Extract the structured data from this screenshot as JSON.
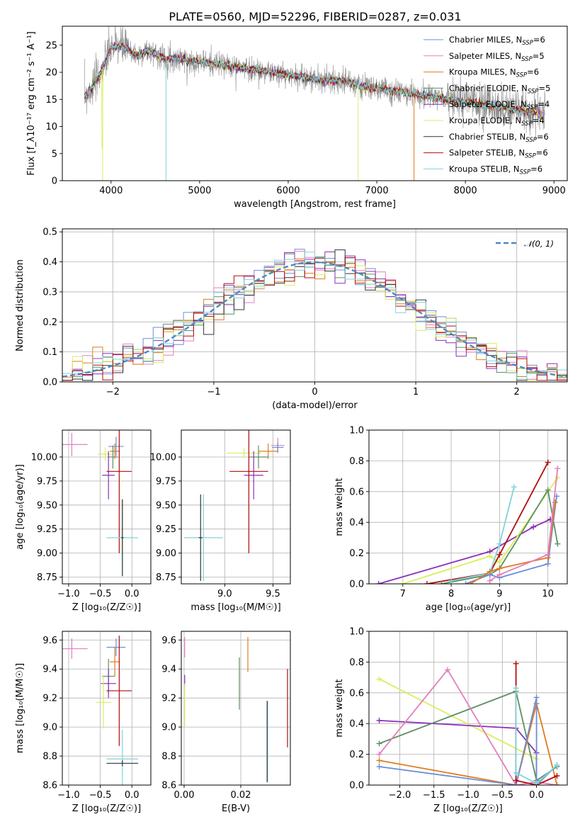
{
  "figure": {
    "title": "PLATE=0560, MJD=52296, FIBERID=0287, z=0.031"
  },
  "colors": {
    "Chabrier MILES": "#6b8fd6",
    "Salpeter MILES": "#e37fbc",
    "Kroupa MILES": "#e07b1f",
    "Chabrier ELODIE": "#5d8f63",
    "Salpeter ELODIE": "#8c2fb8",
    "Kroupa ELODIE": "#d9ee5c",
    "Chabrier STELIB": "#333333",
    "Salpeter STELIB": "#b20d0d",
    "Kroupa STELIB": "#7fd4d9",
    "gaussian": "#4f86c6"
  },
  "chart_data": [
    {
      "id": "spectrum",
      "type": "line",
      "xlabel": "wavelength [Angstrom, rest frame]",
      "ylabel": "Flux [f_λ10⁻¹⁷ erg cm⁻² s⁻¹ A⁻¹]",
      "xlim": [
        3450,
        9150
      ],
      "ylim": [
        0,
        28.5
      ],
      "xticks": [
        4000,
        5000,
        6000,
        7000,
        8000,
        9000
      ],
      "yticks": [
        0,
        5,
        10,
        15,
        20,
        25
      ],
      "xtick_labels": [
        "4000",
        "5000",
        "6000",
        "7000",
        "8000",
        "9000"
      ],
      "ytick_labels": [
        "0",
        "5",
        "10",
        "15",
        "20",
        "25"
      ],
      "legend_position": "top-right",
      "data_points": {
        "x": [
          3700,
          3800,
          3900,
          4000,
          4100,
          4200,
          4300,
          4400,
          4500,
          4600,
          4700,
          4800,
          4900,
          5000,
          5200,
          5400,
          5600,
          5800,
          6000,
          6200,
          6400,
          6600,
          6800,
          7000,
          7200,
          7400,
          7600,
          7800,
          8000,
          8200,
          8400,
          8600,
          8800
        ],
        "y": [
          15.5,
          17.5,
          20.5,
          24.5,
          25.0,
          24.0,
          23.0,
          24.0,
          23.5,
          22.5,
          22.5,
          22.5,
          22.0,
          22.0,
          21.5,
          21.0,
          20.5,
          20.0,
          19.5,
          19.0,
          18.5,
          18.5,
          17.5,
          17.0,
          16.5,
          16.0,
          15.5,
          15.0,
          14.5,
          14.0,
          13.5,
          13.0,
          12.5
        ]
      },
      "series": [
        {
          "name": "Chabrier MILES, N_SSP=6",
          "label_main": "Chabrier MILES, N",
          "label_sub": "SSP",
          "label_tail": "=6",
          "color_key": "Chabrier MILES"
        },
        {
          "name": "Salpeter MILES, N_SSP=5",
          "label_main": "Salpeter MILES, N",
          "label_sub": "SSP",
          "label_tail": "=5",
          "color_key": "Salpeter MILES"
        },
        {
          "name": "Kroupa MILES, N_SSP=6",
          "label_main": "Kroupa MILES, N",
          "label_sub": "SSP",
          "label_tail": "=6",
          "color_key": "Kroupa MILES"
        },
        {
          "name": "Chabrier ELODIE, N_SSP=5",
          "label_main": "Chabrier ELODIE, N",
          "label_sub": "SSP",
          "label_tail": "=5",
          "color_key": "Chabrier ELODIE"
        },
        {
          "name": "Salpeter ELODIE, N_SSP=4",
          "label_main": "Salpeter ELODIE, N",
          "label_sub": "SSP",
          "label_tail": "=4",
          "color_key": "Salpeter ELODIE"
        },
        {
          "name": "Kroupa ELODIE, N_SSP=4",
          "label_main": "Kroupa ELODIE, N",
          "label_sub": "SSP",
          "label_tail": "=4",
          "color_key": "Kroupa ELODIE"
        },
        {
          "name": "Chabrier STELIB, N_SSP=6",
          "label_main": "Chabrier STELIB, N",
          "label_sub": "SSP",
          "label_tail": "=6",
          "color_key": "Chabrier STELIB"
        },
        {
          "name": "Salpeter STELIB, N_SSP=6",
          "label_main": "Salpeter STELIB, N",
          "label_sub": "SSP",
          "label_tail": "=6",
          "color_key": "Salpeter STELIB"
        },
        {
          "name": "Kroupa STELIB, N_SSP=6",
          "label_main": "Kroupa STELIB, N",
          "label_sub": "SSP",
          "label_tail": "=6",
          "color_key": "Kroupa STELIB"
        }
      ]
    },
    {
      "id": "residuals",
      "type": "line",
      "xlabel": "(data-model)/error",
      "ylabel": "Normed distribution",
      "xlim": [
        -2.5,
        2.5
      ],
      "ylim": [
        0,
        0.51
      ],
      "xticks": [
        -2,
        -1,
        0,
        1,
        2
      ],
      "yticks": [
        0.0,
        0.1,
        0.2,
        0.3,
        0.4,
        0.5
      ],
      "xtick_labels": [
        "−2",
        "−1",
        "0",
        "1",
        "2"
      ],
      "ytick_labels": [
        "0.0",
        "0.1",
        "0.2",
        "0.3",
        "0.4",
        "0.5"
      ],
      "grid": true,
      "legend_position": "top-right",
      "gaussian": {
        "name": "𝒩(0, 1)",
        "mean": 0,
        "sigma": 1
      }
    },
    {
      "id": "age_vs_Z",
      "type": "scatter",
      "xlabel": "Z [log₁₀(Z/Z☉)]",
      "ylabel": "age  [log₁₀(age/yr)]",
      "xlim": [
        -1.1,
        0.3
      ],
      "ylim": [
        8.68,
        10.28
      ],
      "xticks": [
        -1.0,
        -0.5,
        0.0
      ],
      "yticks": [
        8.75,
        9.0,
        9.25,
        9.5,
        9.75,
        10.0
      ],
      "xtick_labels": [
        "−1.0",
        "−0.5",
        "0.0"
      ],
      "ytick_labels": [
        "8.75",
        "9.00",
        "9.25",
        "9.50",
        "9.75",
        "10.00"
      ],
      "grid": true,
      "points": [
        {
          "color_key": "Salpeter MILES",
          "x": -0.95,
          "xerr": 0.25,
          "y": 10.13,
          "yerr": 0.12
        },
        {
          "color_key": "Chabrier MILES",
          "x": -0.25,
          "xerr": 0.12,
          "y": 10.11,
          "yerr": 0.1
        },
        {
          "color_key": "Kroupa MILES",
          "x": -0.27,
          "xerr": 0.08,
          "y": 10.06,
          "yerr": 0.08
        },
        {
          "color_key": "Kroupa ELODIE",
          "x": -0.42,
          "xerr": 0.12,
          "y": 10.03,
          "yerr": 0.07
        },
        {
          "color_key": "Chabrier ELODIE",
          "x": -0.3,
          "xerr": 0.08,
          "y": 10.0,
          "yerr": 0.12
        },
        {
          "color_key": "Salpeter ELODIE",
          "x": -0.37,
          "xerr": 0.1,
          "y": 9.81,
          "yerr": 0.25
        },
        {
          "color_key": "Salpeter STELIB",
          "x": -0.2,
          "xerr": 0.2,
          "y": 9.85,
          "yerr": 0.85
        },
        {
          "color_key": "Kroupa STELIB",
          "x": -0.15,
          "xerr": 0.25,
          "y": 9.16,
          "yerr": 0.4
        },
        {
          "color_key": "Chabrier STELIB",
          "x": -0.15,
          "xerr": 0.02,
          "y": 9.16,
          "yerr": 0.4
        }
      ]
    },
    {
      "id": "age_vs_mass",
      "type": "scatter",
      "xlabel": "mass [log₁₀(M/M☉)]",
      "ylabel": "",
      "xlim": [
        8.55,
        9.68
      ],
      "ylim": [
        8.68,
        10.28
      ],
      "xticks": [
        9.0,
        9.5
      ],
      "yticks": [
        8.75,
        9.0,
        9.25,
        9.5,
        9.75,
        10.0
      ],
      "xtick_labels": [
        "9.0",
        "9.5"
      ],
      "ytick_labels": [
        "8.75",
        "9.00",
        "9.25",
        "9.50",
        "9.75",
        "10.00"
      ],
      "grid": true,
      "points": [
        {
          "color_key": "Salpeter MILES",
          "x": 9.55,
          "xerr": 0.07,
          "y": 10.12,
          "yerr": 0.08
        },
        {
          "color_key": "Chabrier MILES",
          "x": 9.55,
          "xerr": 0.06,
          "y": 10.1,
          "yerr": 0.05
        },
        {
          "color_key": "Kroupa MILES",
          "x": 9.45,
          "xerr": 0.1,
          "y": 10.06,
          "yerr": 0.08
        },
        {
          "color_key": "Kroupa ELODIE",
          "x": 9.2,
          "xerr": 0.18,
          "y": 10.04,
          "yerr": 0.05
        },
        {
          "color_key": "Chabrier ELODIE",
          "x": 9.35,
          "xerr": 0.1,
          "y": 10.0,
          "yerr": 0.12
        },
        {
          "color_key": "Salpeter ELODIE",
          "x": 9.3,
          "xerr": 0.1,
          "y": 9.81,
          "yerr": 0.25
        },
        {
          "color_key": "Salpeter STELIB",
          "x": 9.25,
          "xerr": 0.2,
          "y": 9.85,
          "yerr": 0.85
        },
        {
          "color_key": "Kroupa STELIB",
          "x": 8.78,
          "xerr": 0.2,
          "y": 9.16,
          "yerr": 0.45
        },
        {
          "color_key": "Chabrier STELIB",
          "x": 8.75,
          "xerr": 0.02,
          "y": 9.16,
          "yerr": 0.45
        }
      ]
    },
    {
      "id": "massweight_vs_age",
      "type": "line",
      "xlabel": "age  [log₁₀(age/yr)]",
      "ylabel": "mass weight",
      "xlim": [
        6.3,
        10.4
      ],
      "ylim": [
        0,
        1.0
      ],
      "xticks": [
        7,
        8,
        9,
        10
      ],
      "yticks": [
        0.0,
        0.2,
        0.4,
        0.6,
        0.8,
        1.0
      ],
      "xtick_labels": [
        "7",
        "8",
        "9",
        "10"
      ],
      "ytick_labels": [
        "0.0",
        "0.2",
        "0.4",
        "0.6",
        "0.8",
        "1.0"
      ],
      "grid": true,
      "series": [
        {
          "color_key": "Salpeter ELODIE",
          "x": [
            6.5,
            8.8,
            9.7,
            10.05
          ],
          "y": [
            0.0,
            0.21,
            0.37,
            0.42
          ]
        },
        {
          "color_key": "Kroupa ELODIE",
          "x": [
            7.0,
            8.8,
            9.0,
            10.2
          ],
          "y": [
            0.0,
            0.18,
            0.14,
            0.69
          ]
        },
        {
          "color_key": "Salpeter STELIB",
          "x": [
            7.5,
            8.8,
            9.0,
            10.0
          ],
          "y": [
            0.0,
            0.07,
            0.19,
            0.79
          ]
        },
        {
          "color_key": "Chabrier ELODIE",
          "x": [
            7.8,
            8.8,
            9.0,
            10.0,
            10.2
          ],
          "y": [
            0.0,
            0.06,
            0.1,
            0.61,
            0.26
          ]
        },
        {
          "color_key": "Kroupa STELIB",
          "x": [
            8.0,
            8.8,
            9.0,
            9.3
          ],
          "y": [
            0.02,
            0.07,
            0.26,
            0.63
          ]
        },
        {
          "color_key": "Chabrier MILES",
          "x": [
            8.3,
            8.8,
            9.0,
            10.0,
            10.18
          ],
          "y": [
            0.0,
            0.06,
            0.04,
            0.13,
            0.57
          ]
        },
        {
          "color_key": "Kroupa MILES",
          "x": [
            8.4,
            8.8,
            9.0,
            10.0,
            10.15
          ],
          "y": [
            0.0,
            0.08,
            0.1,
            0.17,
            0.53
          ]
        },
        {
          "color_key": "Salpeter MILES",
          "x": [
            8.8,
            9.0,
            10.0,
            10.2
          ],
          "y": [
            0.02,
            0.06,
            0.19,
            0.75
          ]
        }
      ]
    },
    {
      "id": "mass_vs_Z",
      "type": "scatter",
      "xlabel": "Z [log₁₀(Z/Z☉)]",
      "ylabel": "mass [log₁₀(M/M☉)]",
      "xlim": [
        -1.1,
        0.3
      ],
      "ylim": [
        8.6,
        9.66
      ],
      "xticks": [
        -1.0,
        -0.5,
        0.0
      ],
      "yticks": [
        8.6,
        8.8,
        9.0,
        9.2,
        9.4,
        9.6
      ],
      "xtick_labels": [
        "−1.0",
        "−0.5",
        "0.0"
      ],
      "ytick_labels": [
        "8.6",
        "8.8",
        "9.0",
        "9.2",
        "9.4",
        "9.6"
      ],
      "grid": true,
      "points": [
        {
          "color_key": "Salpeter MILES",
          "x": -0.95,
          "xerr": 0.25,
          "y": 9.54,
          "yerr": 0.07
        },
        {
          "color_key": "Chabrier MILES",
          "x": -0.25,
          "xerr": 0.15,
          "y": 9.55,
          "yerr": 0.06
        },
        {
          "color_key": "Kroupa MILES",
          "x": -0.27,
          "xerr": 0.08,
          "y": 9.45,
          "yerr": 0.1
        },
        {
          "color_key": "Chabrier ELODIE",
          "x": -0.37,
          "xerr": 0.1,
          "y": 9.35,
          "yerr": 0.12
        },
        {
          "color_key": "Salpeter ELODIE",
          "x": -0.37,
          "xerr": 0.12,
          "y": 9.3,
          "yerr": 0.1
        },
        {
          "color_key": "Kroupa ELODIE",
          "x": -0.45,
          "xerr": 0.12,
          "y": 9.17,
          "yerr": 0.18
        },
        {
          "color_key": "Salpeter STELIB",
          "x": -0.2,
          "xerr": 0.2,
          "y": 9.25,
          "yerr": 0.38
        },
        {
          "color_key": "Kroupa STELIB",
          "x": -0.15,
          "xerr": 0.25,
          "y": 8.78,
          "yerr": 0.2
        },
        {
          "color_key": "Chabrier STELIB",
          "x": -0.15,
          "xerr": 0.25,
          "y": 8.75,
          "yerr": 0.02
        }
      ]
    },
    {
      "id": "mass_vs_EBV",
      "type": "scatter",
      "xlabel": "E(B-V)",
      "ylabel": "",
      "xlim": [
        -0.001,
        0.0375
      ],
      "ylim": [
        8.6,
        9.66
      ],
      "xticks": [
        0.0,
        0.02
      ],
      "yticks": [
        8.6,
        8.8,
        9.0,
        9.2,
        9.4,
        9.6
      ],
      "xtick_labels": [
        "0.00",
        "0.02"
      ],
      "ytick_labels": [
        "8.6",
        "8.8",
        "9.0",
        "9.2",
        "9.4",
        "9.6"
      ],
      "grid": true,
      "points": [
        {
          "color_key": "Salpeter MILES",
          "x": 0.0002,
          "xerr": 0,
          "y": 9.55,
          "yerr": 0.07
        },
        {
          "color_key": "Salpeter ELODIE",
          "x": 0.0002,
          "xerr": 0,
          "y": 9.32,
          "yerr": 0.04
        },
        {
          "color_key": "Kroupa ELODIE",
          "x": 0.0002,
          "xerr": 0,
          "y": 9.15,
          "yerr": 0.15
        },
        {
          "color_key": "Chabrier ELODIE",
          "x": 0.0195,
          "xerr": 0,
          "y": 9.3,
          "yerr": 0.18
        },
        {
          "color_key": "Kroupa MILES",
          "x": 0.0225,
          "xerr": 0,
          "y": 9.5,
          "yerr": 0.12
        },
        {
          "color_key": "Kroupa STELIB",
          "x": 0.0295,
          "xerr": 0,
          "y": 8.9,
          "yerr": 0.28
        },
        {
          "color_key": "Chabrier STELIB",
          "x": 0.0293,
          "xerr": 0,
          "y": 8.9,
          "yerr": 0.28
        },
        {
          "color_key": "Salpeter STELIB",
          "x": 0.0365,
          "xerr": 0,
          "y": 9.13,
          "yerr": 0.27
        }
      ]
    },
    {
      "id": "massweight_vs_Z",
      "type": "line",
      "xlabel": "Z [log₁₀(Z/Z☉)]",
      "ylabel": "mass weight",
      "xlim": [
        -2.45,
        0.45
      ],
      "ylim": [
        0,
        1.0
      ],
      "xticks": [
        -2.0,
        -1.5,
        -1.0,
        -0.5,
        0.0
      ],
      "yticks": [
        0.0,
        0.2,
        0.4,
        0.6,
        0.8,
        1.0
      ],
      "xtick_labels": [
        "−2.0",
        "−1.5",
        "−1.0",
        "−0.5",
        "0.0"
      ],
      "ytick_labels": [
        "0.0",
        "0.2",
        "0.4",
        "0.6",
        "0.8",
        "1.0"
      ],
      "grid": true,
      "series": [
        {
          "color_key": "Kroupa ELODIE",
          "x": [
            -2.3,
            0.0,
            0.0
          ],
          "y": [
            0.69,
            0.17,
            0.0
          ]
        },
        {
          "color_key": "Salpeter ELODIE",
          "x": [
            -2.3,
            -0.3,
            0.0,
            0.0
          ],
          "y": [
            0.42,
            0.37,
            0.21,
            0.0
          ]
        },
        {
          "color_key": "Chabrier ELODIE",
          "x": [
            -2.3,
            -0.3,
            0.0,
            0.3
          ],
          "y": [
            0.27,
            0.61,
            0.03,
            0.12
          ]
        },
        {
          "color_key": "Salpeter MILES",
          "x": [
            -2.3,
            -1.3,
            -0.3,
            0.0,
            0.3
          ],
          "y": [
            0.2,
            0.75,
            0.0,
            0.02,
            0.0
          ]
        },
        {
          "color_key": "Kroupa MILES",
          "x": [
            -2.3,
            -0.3,
            0.0,
            0.3
          ],
          "y": [
            0.16,
            0.0,
            0.53,
            0.0
          ]
        },
        {
          "color_key": "Chabrier MILES",
          "x": [
            -2.3,
            -0.3,
            0.0,
            0.0,
            0.3
          ],
          "y": [
            0.12,
            0.0,
            0.57,
            0.0,
            0.13
          ]
        },
        {
          "color_key": "Salpeter STELIB",
          "x": [
            -0.3,
            -0.3,
            0.0,
            0.3
          ],
          "y": [
            0.79,
            0.03,
            0.0,
            0.06
          ]
        },
        {
          "color_key": "Kroupa STELIB",
          "x": [
            -0.3,
            -0.3,
            0.0,
            0.3
          ],
          "y": [
            0.63,
            0.08,
            0.01,
            0.13
          ]
        }
      ]
    }
  ]
}
